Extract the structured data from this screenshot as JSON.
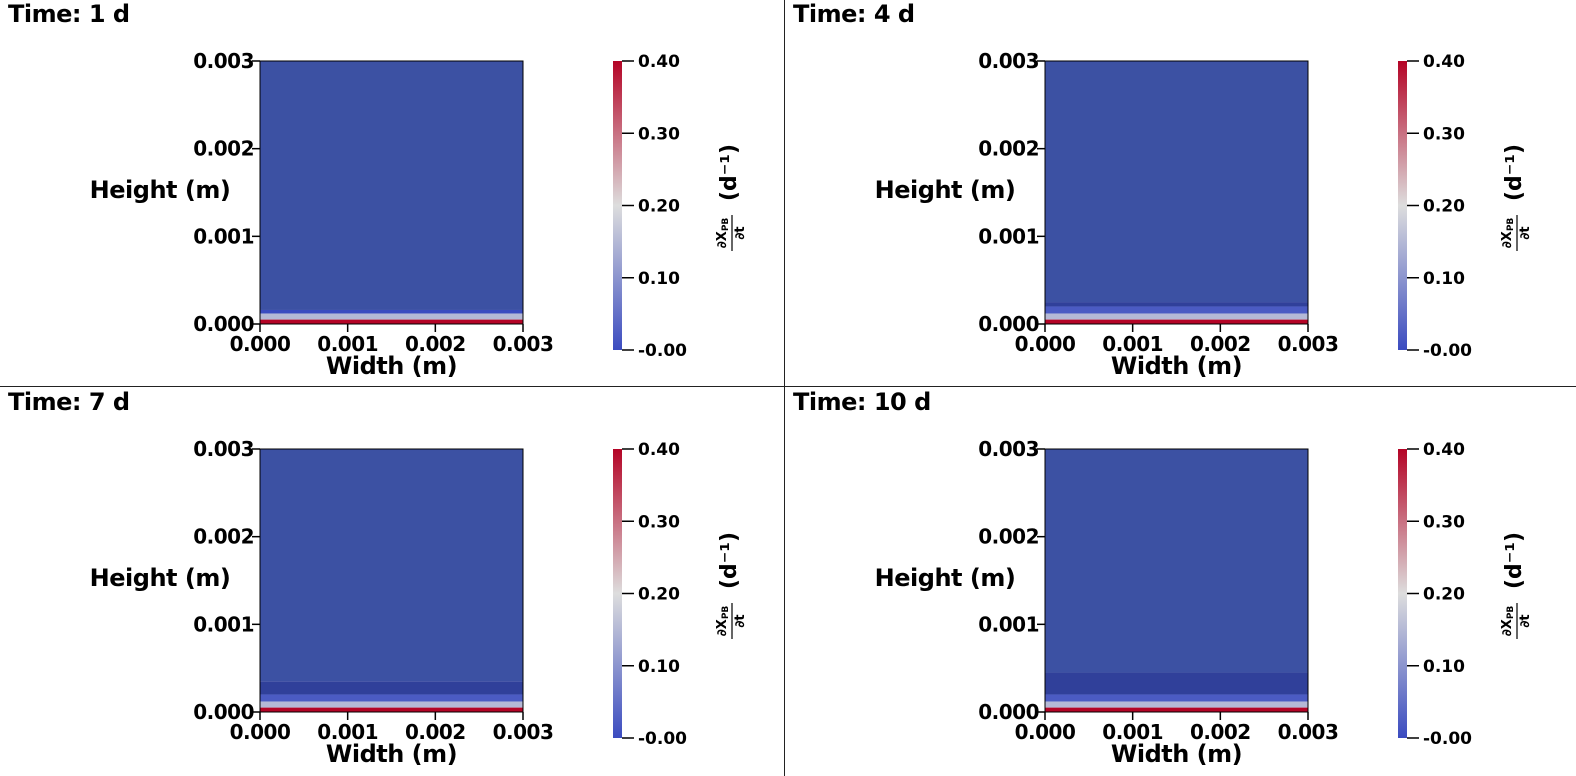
{
  "chart_data": [
    {
      "type": "heatmap",
      "title": "Time: 1 d",
      "xlabel": "Width (m)",
      "ylabel": "Height (m)",
      "xlim": [
        0,
        0.003
      ],
      "ylim": [
        0,
        0.003
      ],
      "xticks": [
        "0.000",
        "0.001",
        "0.002",
        "0.003"
      ],
      "yticks": [
        "0.000",
        "0.001",
        "0.002",
        "0.003"
      ],
      "colorbar": {
        "label_numerator": "∂X",
        "label_subscript": "PB",
        "label_denominator": "∂t",
        "label_unit": "(d⁻¹)",
        "ticks": [
          "-0.00",
          "0.10",
          "0.20",
          "0.30",
          "0.40"
        ],
        "range": [
          0.0,
          0.4
        ],
        "colormap": [
          "#3b4cc0",
          "#dddddd",
          "#b40426"
        ]
      },
      "layers": [
        {
          "from_height": 0.0,
          "to_height": 5e-05,
          "value": 0.4
        },
        {
          "from_height": 5e-05,
          "to_height": 0.00012,
          "value": 0.15
        },
        {
          "from_height": 0.00012,
          "to_height": 0.00016,
          "value": 0.0
        },
        {
          "from_height": 0.00016,
          "to_height": 0.003,
          "value": -0.005
        }
      ]
    },
    {
      "type": "heatmap",
      "title": "Time: 4 d",
      "xlabel": "Width (m)",
      "ylabel": "Height (m)",
      "xlim": [
        0,
        0.003
      ],
      "ylim": [
        0,
        0.003
      ],
      "xticks": [
        "0.000",
        "0.001",
        "0.002",
        "0.003"
      ],
      "yticks": [
        "0.000",
        "0.001",
        "0.002",
        "0.003"
      ],
      "colorbar": {
        "label_numerator": "∂X",
        "label_subscript": "PB",
        "label_denominator": "∂t",
        "label_unit": "(d⁻¹)",
        "ticks": [
          "-0.00",
          "0.10",
          "0.20",
          "0.30",
          "0.40"
        ],
        "range": [
          0.0,
          0.4
        ],
        "colormap": [
          "#3b4cc0",
          "#dddddd",
          "#b40426"
        ]
      },
      "layers": [
        {
          "from_height": 0.0,
          "to_height": 5e-05,
          "value": 0.4
        },
        {
          "from_height": 5e-05,
          "to_height": 0.00012,
          "value": 0.15
        },
        {
          "from_height": 0.00012,
          "to_height": 0.0002,
          "value": 0.02
        },
        {
          "from_height": 0.0002,
          "to_height": 0.00025,
          "value": -0.02
        },
        {
          "from_height": 0.00025,
          "to_height": 0.003,
          "value": -0.005
        }
      ]
    },
    {
      "type": "heatmap",
      "title": "Time: 7 d",
      "xlabel": "Width (m)",
      "ylabel": "Height (m)",
      "xlim": [
        0,
        0.003
      ],
      "ylim": [
        0,
        0.003
      ],
      "xticks": [
        "0.000",
        "0.001",
        "0.002",
        "0.003"
      ],
      "yticks": [
        "0.000",
        "0.001",
        "0.002",
        "0.003"
      ],
      "colorbar": {
        "label_numerator": "∂X",
        "label_subscript": "PB",
        "label_denominator": "∂t",
        "label_unit": "(d⁻¹)",
        "ticks": [
          "-0.00",
          "0.10",
          "0.20",
          "0.30",
          "0.40"
        ],
        "range": [
          0.0,
          0.4
        ],
        "colormap": [
          "#3b4cc0",
          "#dddddd",
          "#b40426"
        ]
      },
      "layers": [
        {
          "from_height": 0.0,
          "to_height": 5e-05,
          "value": 0.4
        },
        {
          "from_height": 5e-05,
          "to_height": 0.00012,
          "value": 0.15
        },
        {
          "from_height": 0.00012,
          "to_height": 0.0002,
          "value": 0.02
        },
        {
          "from_height": 0.0002,
          "to_height": 0.00035,
          "value": -0.02
        },
        {
          "from_height": 0.00035,
          "to_height": 0.003,
          "value": -0.005
        }
      ]
    },
    {
      "type": "heatmap",
      "title": "Time: 10 d",
      "xlabel": "Width (m)",
      "ylabel": "Height (m)",
      "xlim": [
        0,
        0.003
      ],
      "ylim": [
        0,
        0.003
      ],
      "xticks": [
        "0.000",
        "0.001",
        "0.002",
        "0.003"
      ],
      "yticks": [
        "0.000",
        "0.001",
        "0.002",
        "0.003"
      ],
      "colorbar": {
        "label_numerator": "∂X",
        "label_subscript": "PB",
        "label_denominator": "∂t",
        "label_unit": "(d⁻¹)",
        "ticks": [
          "-0.00",
          "0.10",
          "0.20",
          "0.30",
          "0.40"
        ],
        "range": [
          0.0,
          0.4
        ],
        "colormap": [
          "#3b4cc0",
          "#dddddd",
          "#b40426"
        ]
      },
      "layers": [
        {
          "from_height": 0.0,
          "to_height": 5e-05,
          "value": 0.4
        },
        {
          "from_height": 5e-05,
          "to_height": 0.00012,
          "value": 0.15
        },
        {
          "from_height": 0.00012,
          "to_height": 0.0002,
          "value": 0.02
        },
        {
          "from_height": 0.0002,
          "to_height": 0.00045,
          "value": -0.02
        },
        {
          "from_height": 0.00045,
          "to_height": 0.003,
          "value": -0.005
        }
      ]
    }
  ]
}
